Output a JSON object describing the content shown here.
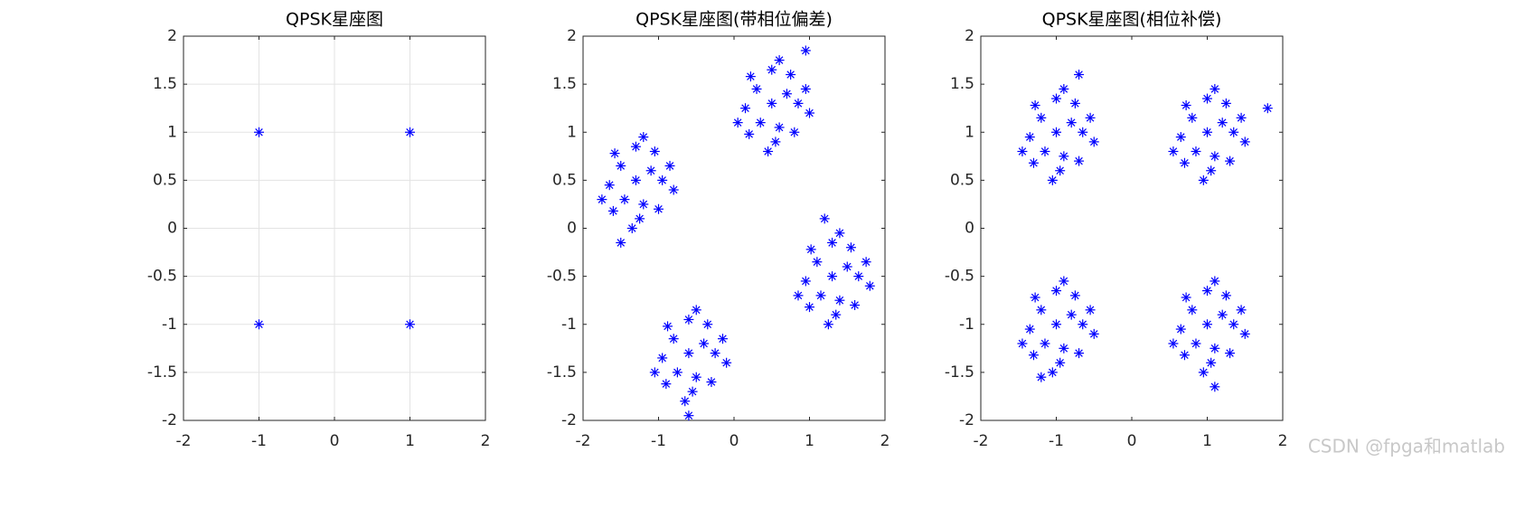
{
  "chart_data": [
    {
      "type": "scatter",
      "title": "QPSK星座图",
      "color": "#0000ff",
      "grid": true,
      "x": [
        -1,
        1,
        -1,
        1
      ],
      "values": [
        1,
        1,
        -1,
        -1
      ],
      "xlim": [
        -2,
        2
      ],
      "ylim": [
        -2,
        2
      ],
      "xticks": [
        -2,
        -1,
        0,
        1,
        2
      ],
      "yticks": [
        -2,
        -1.5,
        -1,
        -0.5,
        0,
        0.5,
        1,
        1.5,
        2
      ]
    },
    {
      "type": "scatter",
      "title": "QPSK星座图(带相位偏差)",
      "color": "#0000ff",
      "grid": false,
      "x": [
        -1.3,
        -1.1,
        -1.5,
        -1.2,
        -1.45,
        -0.95,
        -1.65,
        -1.3,
        -1.25,
        -1.05,
        -1.58,
        -1.0,
        -1.6,
        -0.85,
        -1.75,
        -1.2,
        -1.35,
        -0.8,
        -1.5,
        0.5,
        0.7,
        0.3,
        0.6,
        0.35,
        0.85,
        0.15,
        0.5,
        0.55,
        0.75,
        0.22,
        0.8,
        0.2,
        0.95,
        0.05,
        0.6,
        0.45,
        1.0,
        0.95,
        -0.6,
        -0.4,
        -0.8,
        -0.5,
        -0.75,
        -0.25,
        -0.95,
        -0.6,
        -0.55,
        -0.35,
        -0.88,
        -0.3,
        -0.9,
        -0.15,
        -1.05,
        -0.5,
        -0.65,
        -0.1,
        -0.6,
        1.3,
        1.5,
        1.1,
        1.4,
        1.15,
        1.65,
        0.95,
        1.3,
        1.35,
        1.55,
        1.02,
        1.6,
        1.0,
        1.75,
        0.85,
        1.4,
        1.25,
        1.8,
        1.2
      ],
      "values": [
        0.5,
        0.6,
        0.65,
        0.25,
        0.3,
        0.5,
        0.45,
        0.85,
        0.1,
        0.8,
        0.78,
        0.2,
        0.18,
        0.65,
        0.3,
        0.95,
        0,
        0.4,
        -0.15,
        1.3,
        1.4,
        1.45,
        1.05,
        1.1,
        1.3,
        1.25,
        1.65,
        0.9,
        1.6,
        1.58,
        1.0,
        0.98,
        1.45,
        1.1,
        1.75,
        0.8,
        1.2,
        1.85,
        -1.3,
        -1.2,
        -1.15,
        -1.55,
        -1.5,
        -1.3,
        -1.35,
        -0.95,
        -1.7,
        -1.0,
        -1.02,
        -1.6,
        -1.62,
        -1.15,
        -1.5,
        -0.85,
        -1.8,
        -1.4,
        -1.95,
        -0.5,
        -0.4,
        -0.35,
        -0.75,
        -0.7,
        -0.5,
        -0.55,
        -0.15,
        -0.9,
        -0.2,
        -0.22,
        -0.8,
        -0.82,
        -0.35,
        -0.7,
        -0.05,
        -1.0,
        -0.6,
        0.1
      ],
      "xlim": [
        -2,
        2
      ],
      "ylim": [
        -2,
        2
      ],
      "xticks": [
        -2,
        -1,
        0,
        1,
        2
      ],
      "yticks": [
        -2,
        -1.5,
        -1,
        -0.5,
        0,
        0.5,
        1,
        1.5,
        2
      ]
    },
    {
      "type": "scatter",
      "title": "QPSK星座图(相位补偿)",
      "color": "#0000ff",
      "grid": false,
      "x": [
        -1,
        -0.8,
        -1.2,
        -0.9,
        -1.15,
        -0.65,
        -1.35,
        -1,
        -0.95,
        -0.75,
        -1.28,
        -0.7,
        -1.3,
        -0.55,
        -1.45,
        -0.9,
        -1.05,
        -0.5,
        -0.7,
        1,
        1.2,
        0.8,
        1.1,
        0.85,
        1.35,
        0.65,
        1,
        1.05,
        1.25,
        0.72,
        1.3,
        0.7,
        1.45,
        0.55,
        1.1,
        0.95,
        1.5,
        1.8,
        -1,
        -0.8,
        -1.2,
        -0.9,
        -1.15,
        -0.65,
        -1.35,
        -1,
        -0.95,
        -0.75,
        -1.28,
        -0.7,
        -1.3,
        -0.55,
        -1.45,
        -0.9,
        -1.05,
        -0.5,
        -1.2,
        1,
        1.2,
        0.8,
        1.1,
        0.85,
        1.35,
        0.65,
        1,
        1.05,
        1.25,
        0.72,
        1.3,
        0.7,
        1.45,
        0.55,
        1.1,
        0.95,
        1.5,
        1.1
      ],
      "values": [
        1,
        1.1,
        1.15,
        0.75,
        0.8,
        1,
        0.95,
        1.35,
        0.6,
        1.3,
        1.28,
        0.7,
        0.68,
        1.15,
        0.8,
        1.45,
        0.5,
        0.9,
        1.6,
        1,
        1.1,
        1.15,
        0.75,
        0.8,
        1,
        0.95,
        1.35,
        0.6,
        1.3,
        1.28,
        0.7,
        0.68,
        1.15,
        0.8,
        1.45,
        0.5,
        0.9,
        1.25,
        -1,
        -0.9,
        -0.85,
        -1.25,
        -1.2,
        -1,
        -1.05,
        -0.65,
        -1.4,
        -0.7,
        -0.72,
        -1.3,
        -1.32,
        -0.85,
        -1.2,
        -0.55,
        -1.5,
        -1.1,
        -1.55,
        -1,
        -0.9,
        -0.85,
        -1.25,
        -1.2,
        -1,
        -1.05,
        -0.65,
        -1.4,
        -0.7,
        -0.72,
        -1.3,
        -1.32,
        -0.85,
        -1.2,
        -0.55,
        -1.5,
        -1.1,
        -1.65
      ],
      "xlim": [
        -2,
        2
      ],
      "ylim": [
        -2,
        2
      ],
      "xticks": [
        -2,
        -1,
        0,
        1,
        2
      ],
      "yticks": [
        -2,
        -1.5,
        -1,
        -0.5,
        0,
        0.5,
        1,
        1.5,
        2
      ]
    }
  ],
  "watermark": "CSDN @fpga和matlab"
}
